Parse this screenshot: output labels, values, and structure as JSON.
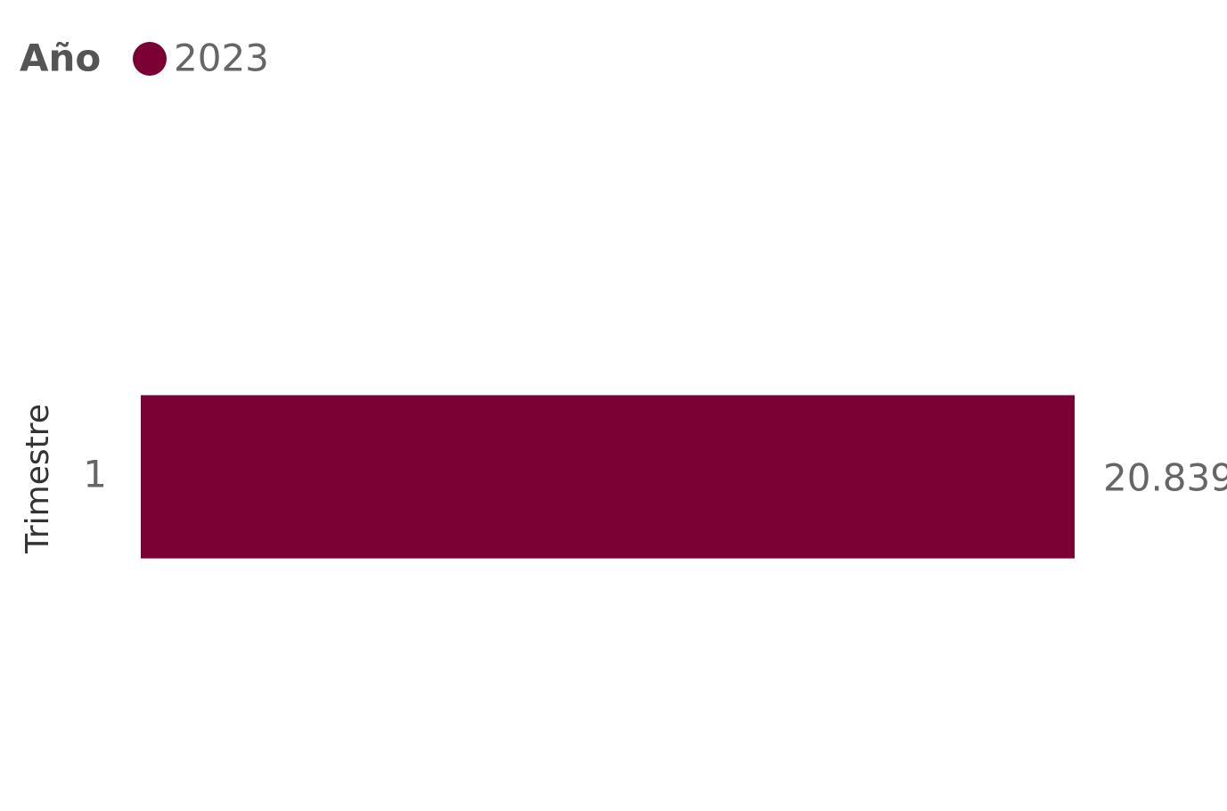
{
  "chart_data": {
    "type": "hbar",
    "legend_title": "Año",
    "y_label": "Trimestre",
    "categories": [
      "1"
    ],
    "series": [
      {
        "name": "2023",
        "color": "#7b0033",
        "values": [
          20839
        ],
        "value_labels": [
          "20.839"
        ]
      }
    ],
    "xlim": [
      0,
      20839
    ],
    "legend_position": "top-left"
  }
}
